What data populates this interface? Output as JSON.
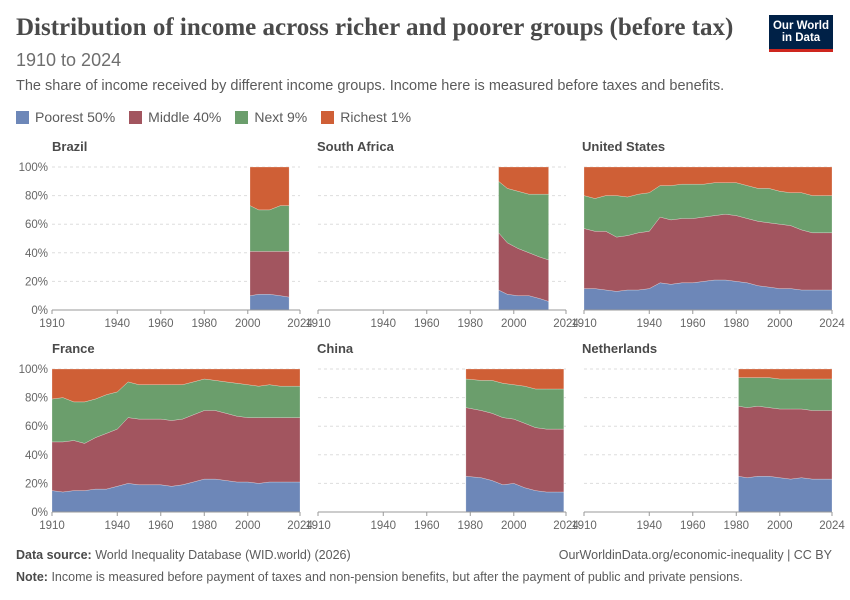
{
  "header": {
    "title": "Distribution of income across richer and poorer groups (before tax)",
    "subtitle": "1910 to 2024",
    "description": "The share of income received by different income groups. Income here is measured before taxes and benefits."
  },
  "logo": {
    "line1": "Our World",
    "line2": "in Data",
    "bg_color": "#002147",
    "accent_color": "#ce261e"
  },
  "footer": {
    "source_label": "Data source:",
    "source_text": "World Inequality Database (WID.world) (2026)",
    "license": "OurWorldinData.org/economic-inequality | CC BY",
    "note_label": "Note:",
    "note_text": "Income is measured before payment of taxes and non-pension benefits, but after the payment of public and private pensions."
  },
  "chart_data": {
    "type": "area",
    "stacked": true,
    "xlim": [
      1910,
      2024
    ],
    "ylim": [
      0,
      100
    ],
    "x_ticks": [
      1910,
      1940,
      1960,
      1980,
      2000,
      2024
    ],
    "y_ticks": [
      "0%",
      "20%",
      "40%",
      "60%",
      "80%",
      "100%"
    ],
    "legend_position": "top",
    "series_meta": [
      {
        "name": "Poorest 50%",
        "color": "#6d87b8"
      },
      {
        "name": "Middle 40%",
        "color": "#a2555f"
      },
      {
        "name": "Next 9%",
        "color": "#6b9e6c"
      },
      {
        "name": "Richest 1%",
        "color": "#cf5f36"
      }
    ],
    "panels": [
      {
        "title": "Brazil",
        "x": [
          2001,
          2005,
          2010,
          2015,
          2019
        ],
        "series": [
          [
            10,
            11,
            11,
            10,
            9
          ],
          [
            31,
            30,
            30,
            31,
            32
          ],
          [
            32,
            29,
            29,
            32,
            32
          ],
          [
            27,
            30,
            30,
            27,
            27
          ]
        ]
      },
      {
        "title": "South Africa",
        "x": [
          1993,
          1997,
          2002,
          2007,
          2012,
          2016
        ],
        "series": [
          [
            14,
            11,
            10,
            10,
            8,
            6
          ],
          [
            40,
            36,
            33,
            30,
            29,
            29
          ],
          [
            36,
            38,
            40,
            41,
            44,
            46
          ],
          [
            10,
            15,
            17,
            19,
            19,
            19
          ]
        ]
      },
      {
        "title": "United States",
        "x": [
          1910,
          1915,
          1920,
          1925,
          1930,
          1935,
          1940,
          1945,
          1950,
          1955,
          1960,
          1965,
          1970,
          1975,
          1980,
          1985,
          1990,
          1995,
          2000,
          2005,
          2010,
          2015,
          2020,
          2024
        ],
        "series": [
          [
            15,
            15,
            14,
            13,
            14,
            14,
            15,
            19,
            18,
            19,
            19,
            20,
            21,
            21,
            20,
            19,
            17,
            16,
            15,
            15,
            14,
            14,
            14,
            14
          ],
          [
            42,
            40,
            41,
            38,
            38,
            40,
            40,
            46,
            45,
            45,
            45,
            45,
            45,
            46,
            46,
            45,
            45,
            45,
            45,
            44,
            42,
            40,
            40,
            40
          ],
          [
            23,
            23,
            25,
            29,
            27,
            27,
            27,
            22,
            24,
            24,
            24,
            23,
            23,
            22,
            23,
            23,
            23,
            24,
            23,
            23,
            26,
            26,
            26,
            26
          ],
          [
            20,
            22,
            20,
            20,
            21,
            19,
            18,
            13,
            13,
            12,
            12,
            12,
            11,
            11,
            11,
            13,
            15,
            15,
            17,
            18,
            18,
            20,
            20,
            20
          ]
        ]
      },
      {
        "title": "France",
        "x": [
          1910,
          1915,
          1920,
          1925,
          1930,
          1935,
          1940,
          1945,
          1950,
          1955,
          1960,
          1965,
          1970,
          1975,
          1980,
          1985,
          1990,
          1995,
          2000,
          2005,
          2010,
          2015,
          2020,
          2024
        ],
        "series": [
          [
            15,
            14,
            15,
            15,
            16,
            16,
            18,
            20,
            19,
            19,
            19,
            18,
            19,
            21,
            23,
            23,
            22,
            21,
            21,
            20,
            21,
            21,
            21,
            21
          ],
          [
            34,
            35,
            35,
            33,
            36,
            39,
            40,
            46,
            46,
            46,
            46,
            46,
            46,
            47,
            48,
            48,
            47,
            46,
            45,
            46,
            45,
            45,
            45,
            45
          ],
          [
            30,
            31,
            27,
            29,
            27,
            27,
            26,
            25,
            24,
            24,
            24,
            25,
            24,
            23,
            22,
            21,
            22,
            23,
            23,
            22,
            23,
            22,
            22,
            22
          ],
          [
            21,
            20,
            23,
            23,
            21,
            18,
            16,
            9,
            11,
            11,
            11,
            11,
            11,
            9,
            7,
            8,
            9,
            10,
            11,
            12,
            11,
            12,
            12,
            12
          ]
        ]
      },
      {
        "title": "China",
        "x": [
          1978,
          1985,
          1990,
          1995,
          2000,
          2005,
          2010,
          2015,
          2020,
          2023
        ],
        "series": [
          [
            25,
            24,
            22,
            19,
            20,
            17,
            15,
            14,
            14,
            14
          ],
          [
            48,
            47,
            47,
            47,
            45,
            45,
            44,
            44,
            44,
            44
          ],
          [
            20,
            21,
            23,
            24,
            24,
            26,
            27,
            28,
            28,
            28
          ],
          [
            7,
            8,
            8,
            10,
            11,
            12,
            14,
            14,
            14,
            14
          ]
        ]
      },
      {
        "title": "Netherlands",
        "x": [
          1981,
          1985,
          1990,
          1995,
          2000,
          2005,
          2010,
          2015,
          2020,
          2024
        ],
        "series": [
          [
            25,
            24,
            25,
            25,
            24,
            23,
            24,
            23,
            23,
            23
          ],
          [
            49,
            49,
            49,
            48,
            48,
            49,
            48,
            48,
            48,
            48
          ],
          [
            20,
            21,
            20,
            21,
            21,
            21,
            21,
            22,
            22,
            22
          ],
          [
            6,
            6,
            6,
            6,
            7,
            7,
            7,
            7,
            7,
            7
          ]
        ]
      }
    ]
  }
}
